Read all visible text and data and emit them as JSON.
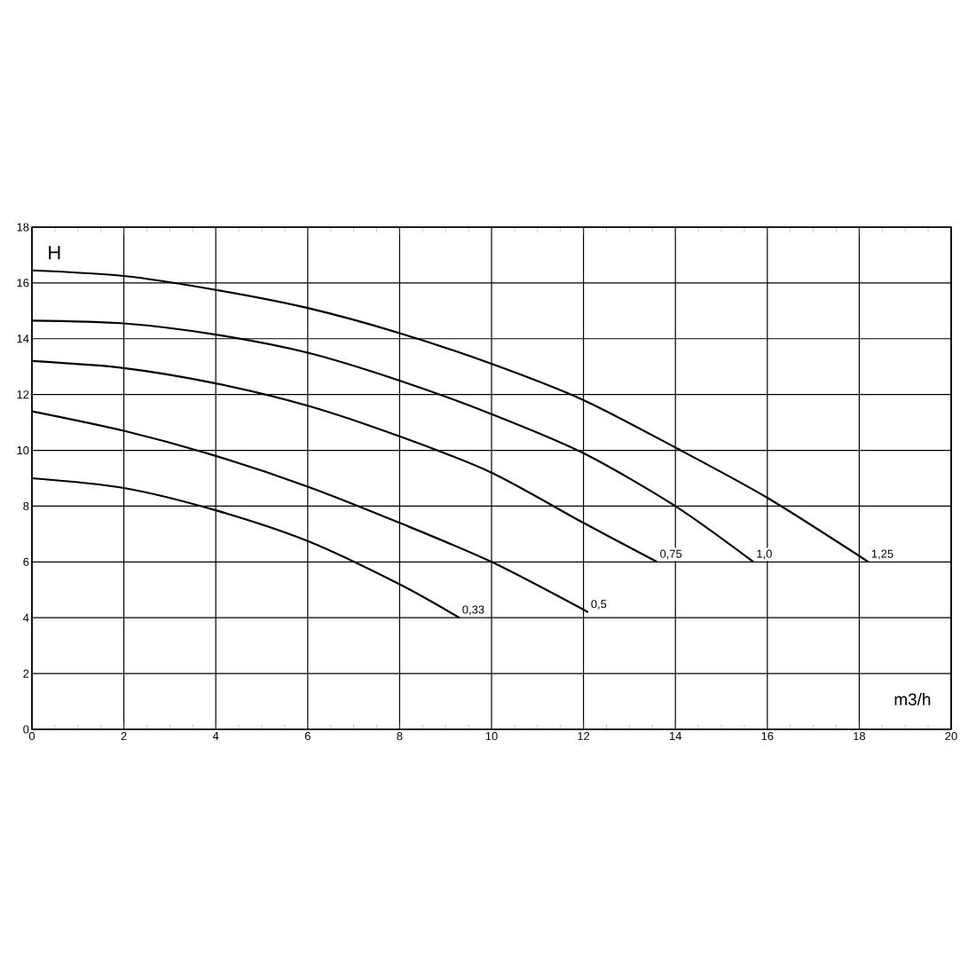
{
  "chart_data": {
    "type": "line",
    "xlabel": "m3/h",
    "ylabel": "H",
    "xlim": [
      0,
      20
    ],
    "ylim": [
      0,
      18
    ],
    "xticks": [
      0,
      2,
      4,
      6,
      8,
      10,
      12,
      14,
      16,
      18,
      20
    ],
    "yticks": [
      0,
      2,
      4,
      6,
      8,
      10,
      12,
      14,
      16,
      18
    ],
    "grid": true,
    "legend": false,
    "marker": "none",
    "line_style": "solid",
    "series": [
      {
        "name": "0,33",
        "color": "#000000",
        "x": [
          0,
          2,
          4,
          6,
          8,
          9.3
        ],
        "values": [
          9.0,
          8.65,
          7.85,
          6.75,
          5.2,
          4.0
        ]
      },
      {
        "name": "0,5",
        "color": "#000000",
        "x": [
          0,
          2,
          4,
          6,
          8,
          10,
          12.1
        ],
        "values": [
          11.4,
          10.7,
          9.8,
          8.7,
          7.4,
          6.0,
          4.2
        ]
      },
      {
        "name": "0,75",
        "color": "#000000",
        "x": [
          0,
          2,
          4,
          6,
          8,
          10,
          12,
          13.6
        ],
        "values": [
          13.2,
          12.95,
          12.4,
          11.6,
          10.5,
          9.2,
          7.4,
          6.0
        ]
      },
      {
        "name": "1,0",
        "color": "#000000",
        "x": [
          0,
          2,
          4,
          6,
          8,
          10,
          12,
          14,
          15.7
        ],
        "values": [
          14.65,
          14.55,
          14.15,
          13.5,
          12.5,
          11.3,
          9.9,
          8.0,
          6.0
        ]
      },
      {
        "name": "1,25",
        "color": "#000000",
        "x": [
          0,
          2,
          4,
          6,
          8,
          10,
          12,
          14,
          16,
          18.2
        ],
        "values": [
          16.45,
          16.25,
          15.75,
          15.1,
          14.2,
          13.1,
          11.8,
          10.1,
          8.3,
          6.0
        ]
      }
    ]
  }
}
